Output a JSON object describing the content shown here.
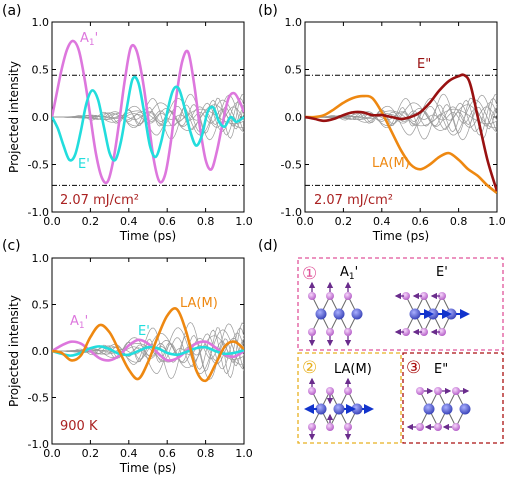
{
  "figure": {
    "panel_letters": [
      "(a)",
      "(b)",
      "(c)",
      "(d)"
    ]
  },
  "colors": {
    "A1": "#dd77dd",
    "E_prime": "#22dddd",
    "LA_M": "#ee8811",
    "E_dprime": "#991111",
    "gray": "#9a9a9a",
    "annotation": "#aa2222",
    "box1": "#e0559a",
    "box2": "#e8b020",
    "box3": "#aa1111",
    "atom_big": "#4a56cc",
    "atom_small": "#c87ad8",
    "bond": "#666666",
    "arrow_purple": "#6a2c8c",
    "arrow_blue": "#1133cc"
  },
  "chart_data": [
    {
      "panel": "(a)",
      "type": "line",
      "xlabel": "Time (ps)",
      "ylabel": "Projected intensity",
      "xlim": [
        0,
        1.0
      ],
      "ylim": [
        -1.0,
        1.0
      ],
      "xticks": [
        "0.0",
        "0.2",
        "0.4",
        "0.6",
        "0.8",
        "1.0"
      ],
      "yticks": [
        "-1.0",
        "-0.5",
        "0.0",
        "0.5",
        "1.0"
      ],
      "hlines": [
        0.44,
        -0.72
      ],
      "annotation": "2.07 mJ/cm²",
      "series": [
        {
          "name": "A1'",
          "role": "A1",
          "x": [
            0,
            0.02,
            0.05,
            0.08,
            0.11,
            0.14,
            0.17,
            0.2,
            0.23,
            0.26,
            0.29,
            0.32,
            0.35,
            0.38,
            0.41,
            0.44,
            0.47,
            0.5,
            0.53,
            0.56,
            0.59,
            0.62,
            0.65,
            0.68,
            0.71,
            0.74,
            0.77,
            0.8,
            0.83,
            0.86,
            0.89,
            0.92,
            0.95,
            0.98,
            1.0
          ],
          "y": [
            0.0,
            0.2,
            0.5,
            0.72,
            0.8,
            0.7,
            0.4,
            0.0,
            -0.4,
            -0.64,
            -0.68,
            -0.45,
            -0.05,
            0.4,
            0.73,
            0.7,
            0.42,
            0.0,
            -0.45,
            -0.68,
            -0.6,
            -0.25,
            0.25,
            0.6,
            0.68,
            0.35,
            -0.1,
            -0.45,
            -0.55,
            -0.35,
            -0.05,
            0.2,
            0.25,
            0.15,
            0.05
          ]
        },
        {
          "name": "E'",
          "role": "E_prime",
          "x": [
            0,
            0.03,
            0.06,
            0.09,
            0.12,
            0.15,
            0.18,
            0.21,
            0.24,
            0.27,
            0.3,
            0.33,
            0.36,
            0.39,
            0.42,
            0.45,
            0.48,
            0.51,
            0.54,
            0.57,
            0.6,
            0.63,
            0.66,
            0.69,
            0.72,
            0.75,
            0.78,
            0.81,
            0.84,
            0.87,
            0.9,
            0.93,
            0.96,
            1.0
          ],
          "y": [
            0.0,
            -0.12,
            -0.3,
            -0.45,
            -0.4,
            -0.15,
            0.15,
            0.28,
            0.18,
            -0.1,
            -0.38,
            -0.45,
            -0.25,
            0.1,
            0.4,
            0.36,
            0.05,
            -0.3,
            -0.42,
            -0.25,
            0.05,
            0.28,
            0.3,
            0.1,
            -0.15,
            -0.3,
            -0.2,
            0.05,
            0.1,
            -0.05,
            -0.1,
            0.0,
            -0.05,
            0.0
          ]
        }
      ]
    },
    {
      "panel": "(b)",
      "type": "line",
      "xlabel": "Time (ps)",
      "xlim": [
        0,
        1.0
      ],
      "ylim": [
        -1.0,
        1.0
      ],
      "xticks": [
        "0.0",
        "0.2",
        "0.4",
        "0.6",
        "0.8",
        "1.0"
      ],
      "yticks": [
        "-1.0",
        "-0.5",
        "0.0",
        "0.5",
        "1.0"
      ],
      "hlines": [
        0.44,
        -0.72
      ],
      "annotation": "2.07 mJ/cm²",
      "series": [
        {
          "name": "LA(M)",
          "role": "LA_M",
          "x": [
            0,
            0.05,
            0.1,
            0.15,
            0.2,
            0.25,
            0.3,
            0.35,
            0.4,
            0.45,
            0.5,
            0.55,
            0.6,
            0.65,
            0.7,
            0.75,
            0.8,
            0.85,
            0.9,
            0.95,
            1.0
          ],
          "y": [
            0.0,
            0.0,
            0.02,
            0.08,
            0.15,
            0.2,
            0.22,
            0.2,
            0.05,
            -0.15,
            -0.35,
            -0.5,
            -0.55,
            -0.5,
            -0.42,
            -0.38,
            -0.45,
            -0.55,
            -0.62,
            -0.72,
            -0.8
          ]
        },
        {
          "name": "E\"",
          "role": "E_dprime",
          "x": [
            0,
            0.05,
            0.1,
            0.15,
            0.2,
            0.25,
            0.3,
            0.35,
            0.4,
            0.45,
            0.5,
            0.55,
            0.6,
            0.65,
            0.7,
            0.75,
            0.8,
            0.83,
            0.86,
            0.9,
            0.95,
            1.0
          ],
          "y": [
            0.0,
            -0.02,
            -0.04,
            -0.02,
            0.02,
            0.05,
            0.05,
            0.02,
            0.02,
            0.0,
            -0.02,
            0.0,
            0.05,
            0.15,
            0.28,
            0.38,
            0.43,
            0.44,
            0.35,
            0.0,
            -0.45,
            -0.78
          ]
        }
      ]
    },
    {
      "panel": "(c)",
      "type": "line",
      "xlabel": "Time (ps)",
      "ylabel": "Projected intensity",
      "xlim": [
        0,
        1.0
      ],
      "ylim": [
        -1.0,
        1.0
      ],
      "xticks": [
        "0.0",
        "0.2",
        "0.4",
        "0.6",
        "0.8",
        "1.0"
      ],
      "yticks": [
        "-1.0",
        "-0.5",
        "0.0",
        "0.5",
        "1.0"
      ],
      "annotation": "900 K",
      "series": [
        {
          "name": "A1'",
          "role": "A1",
          "x": [
            0,
            0.05,
            0.1,
            0.15,
            0.2,
            0.25,
            0.3,
            0.35,
            0.4,
            0.45,
            0.5,
            0.55,
            0.6,
            0.65,
            0.7,
            0.75,
            0.8,
            0.85,
            0.9,
            0.95,
            1.0
          ],
          "y": [
            0.0,
            0.06,
            0.1,
            0.08,
            0.0,
            -0.08,
            -0.1,
            -0.05,
            0.06,
            0.12,
            0.08,
            -0.02,
            -0.1,
            -0.08,
            0.0,
            0.08,
            0.1,
            0.04,
            -0.04,
            -0.06,
            0.0
          ]
        },
        {
          "name": "E'",
          "role": "E_prime",
          "x": [
            0,
            0.05,
            0.1,
            0.15,
            0.2,
            0.25,
            0.3,
            0.35,
            0.4,
            0.45,
            0.5,
            0.55,
            0.6,
            0.65,
            0.7,
            0.75,
            0.8,
            0.85,
            0.9,
            0.95,
            1.0
          ],
          "y": [
            0.0,
            -0.03,
            -0.05,
            -0.02,
            0.03,
            0.05,
            0.02,
            -0.03,
            -0.04,
            0.0,
            0.04,
            0.03,
            -0.02,
            -0.04,
            -0.01,
            0.03,
            0.04,
            0.0,
            -0.03,
            -0.02,
            0.01
          ]
        },
        {
          "name": "LA(M)",
          "role": "LA_M",
          "x": [
            0,
            0.05,
            0.1,
            0.15,
            0.2,
            0.25,
            0.3,
            0.35,
            0.4,
            0.45,
            0.5,
            0.55,
            0.6,
            0.65,
            0.7,
            0.75,
            0.8,
            0.85,
            0.9,
            0.95,
            1.0
          ],
          "y": [
            0.0,
            -0.02,
            -0.1,
            -0.05,
            0.15,
            0.28,
            0.2,
            0.0,
            -0.2,
            -0.3,
            -0.12,
            0.15,
            0.38,
            0.45,
            0.2,
            -0.2,
            -0.32,
            -0.15,
            0.05,
            0.1,
            0.02
          ]
        }
      ]
    }
  ],
  "panel_d": {
    "box1": {
      "number": "①",
      "label_a1": "A",
      "label_a1_sub": "1",
      "label_a1_prime": "'",
      "label_e": "E'"
    },
    "box2": {
      "number": "②",
      "label": "LA(M)"
    },
    "box3": {
      "number": "③",
      "label": "E\""
    }
  },
  "legend_labels": {
    "a_A1": "A",
    "a_A1_sub": "1",
    "a_A1_prime": "'",
    "a_E": "E'",
    "b_E2": "E\"",
    "b_LA": "LA(M)",
    "c_A1": "A",
    "c_A1_sub": "1",
    "c_A1_prime": "'",
    "c_E": "E'",
    "c_LA": "LA(M)"
  }
}
